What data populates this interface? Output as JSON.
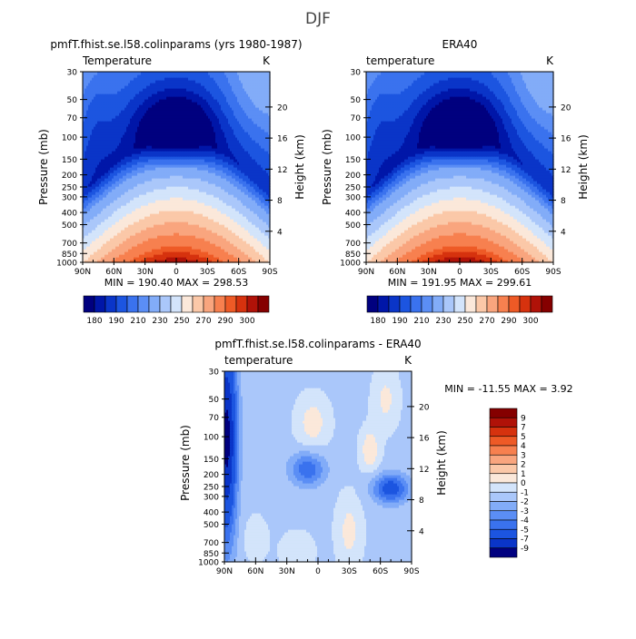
{
  "title": "DJF",
  "chart_data": [
    {
      "type": "heatmap",
      "title": "pmfT.fhist.se.l58.colinparams (yrs 1980-1987)",
      "left_label": "Temperature",
      "right_label": "K",
      "ylabel": "Pressure (mb)",
      "y2label": "Height (km)",
      "xticks": [
        "90N",
        "60N",
        "30N",
        "0",
        "30S",
        "60S",
        "90S"
      ],
      "yticks": [
        "30",
        "50",
        "70",
        "100",
        "150",
        "200",
        "250",
        "300",
        "400",
        "500",
        "700",
        "850",
        "1000"
      ],
      "y2ticks": [
        "20",
        "16",
        "12",
        "8",
        "4"
      ],
      "xlim": [
        "90N",
        "90S"
      ],
      "ylim": [
        1000,
        30
      ],
      "stats": "MIN = 190.40   MAX = 298.53",
      "colorbar_labels": [
        "180",
        "190",
        "210",
        "230",
        "250",
        "270",
        "290",
        "300"
      ]
    },
    {
      "type": "heatmap",
      "title": "ERA40",
      "left_label": "temperature",
      "right_label": "K",
      "ylabel": "Pressure (mb)",
      "y2label": "Height (km)",
      "xticks": [
        "90N",
        "60N",
        "30N",
        "0",
        "30S",
        "60S",
        "90S"
      ],
      "yticks": [
        "30",
        "50",
        "70",
        "100",
        "150",
        "200",
        "250",
        "300",
        "400",
        "500",
        "700",
        "850",
        "1000"
      ],
      "y2ticks": [
        "20",
        "16",
        "12",
        "8",
        "4"
      ],
      "xlim": [
        "90N",
        "90S"
      ],
      "ylim": [
        1000,
        30
      ],
      "stats": "MIN = 191.95   MAX = 299.61",
      "colorbar_labels": [
        "180",
        "190",
        "210",
        "230",
        "250",
        "270",
        "290",
        "300"
      ]
    },
    {
      "type": "heatmap",
      "title": "pmfT.fhist.se.l58.colinparams - ERA40",
      "left_label": "temperature",
      "right_label": "K",
      "ylabel": "Pressure (mb)",
      "y2label": "Height (km)",
      "xticks": [
        "90N",
        "60N",
        "30N",
        "0",
        "30S",
        "60S",
        "90S"
      ],
      "yticks": [
        "30",
        "50",
        "70",
        "100",
        "150",
        "200",
        "250",
        "300",
        "400",
        "500",
        "700",
        "850",
        "1000"
      ],
      "y2ticks": [
        "20",
        "16",
        "12",
        "8",
        "4"
      ],
      "xlim": [
        "90N",
        "90S"
      ],
      "ylim": [
        1000,
        30
      ],
      "stats": "MIN = -11.55   MAX =  3.92",
      "colorbar_labels": [
        "9",
        "7",
        "5",
        "4",
        "3",
        "2",
        "1",
        "0",
        "-1",
        "-2",
        "-3",
        "-4",
        "-5",
        "-7",
        "-9"
      ]
    }
  ],
  "palette_temp": [
    "#00007f",
    "#0016a8",
    "#0a35c8",
    "#1c55e0",
    "#3a72ee",
    "#5b8ef5",
    "#82acf8",
    "#aac7fa",
    "#d3e4fb",
    "#fbe8da",
    "#fbc8a8",
    "#f9a57e",
    "#f7804f",
    "#ee5a26",
    "#d6320e",
    "#b01208",
    "#850000"
  ],
  "palette_diff": [
    "#850000",
    "#b01208",
    "#d6320e",
    "#ee5a26",
    "#f7804f",
    "#f9a57e",
    "#fbc8a8",
    "#fbe8da",
    "#d3e4fb",
    "#aac7fa",
    "#82acf8",
    "#5b8ef5",
    "#3a72ee",
    "#1c55e0",
    "#0a35c8",
    "#00007f"
  ]
}
